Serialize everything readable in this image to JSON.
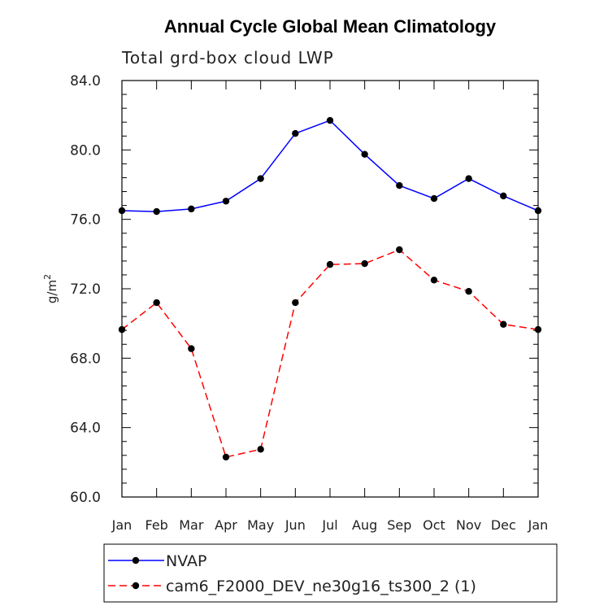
{
  "chart_data": {
    "type": "line",
    "title": "Annual Cycle Global Mean Climatology",
    "subtitle": "Total grd-box cloud LWP",
    "ylabel": "g/m",
    "ylabel_superscript": "2",
    "ylim": [
      60.0,
      84.0
    ],
    "yticks": [
      "60.0",
      "64.0",
      "68.0",
      "72.0",
      "76.0",
      "80.0",
      "84.0"
    ],
    "categories": [
      "Jan",
      "Feb",
      "Mar",
      "Apr",
      "May",
      "Jun",
      "Jul",
      "Aug",
      "Sep",
      "Oct",
      "Nov",
      "Dec",
      "Jan"
    ],
    "grid": false,
    "legend_position": "bottom",
    "series": [
      {
        "name": "NVAP",
        "color": "#0000ff",
        "dashed": false,
        "values": [
          76.5,
          76.45,
          76.6,
          77.05,
          78.35,
          80.95,
          81.7,
          79.75,
          77.95,
          77.2,
          78.35,
          77.35,
          76.5
        ]
      },
      {
        "name": "cam6_F2000_DEV_ne30g16_ts300_2 (1)",
        "color": "#ff0000",
        "dashed": true,
        "values": [
          69.65,
          71.2,
          68.55,
          62.3,
          62.75,
          71.2,
          73.4,
          73.45,
          74.25,
          72.5,
          71.85,
          69.95,
          69.65
        ]
      }
    ]
  }
}
